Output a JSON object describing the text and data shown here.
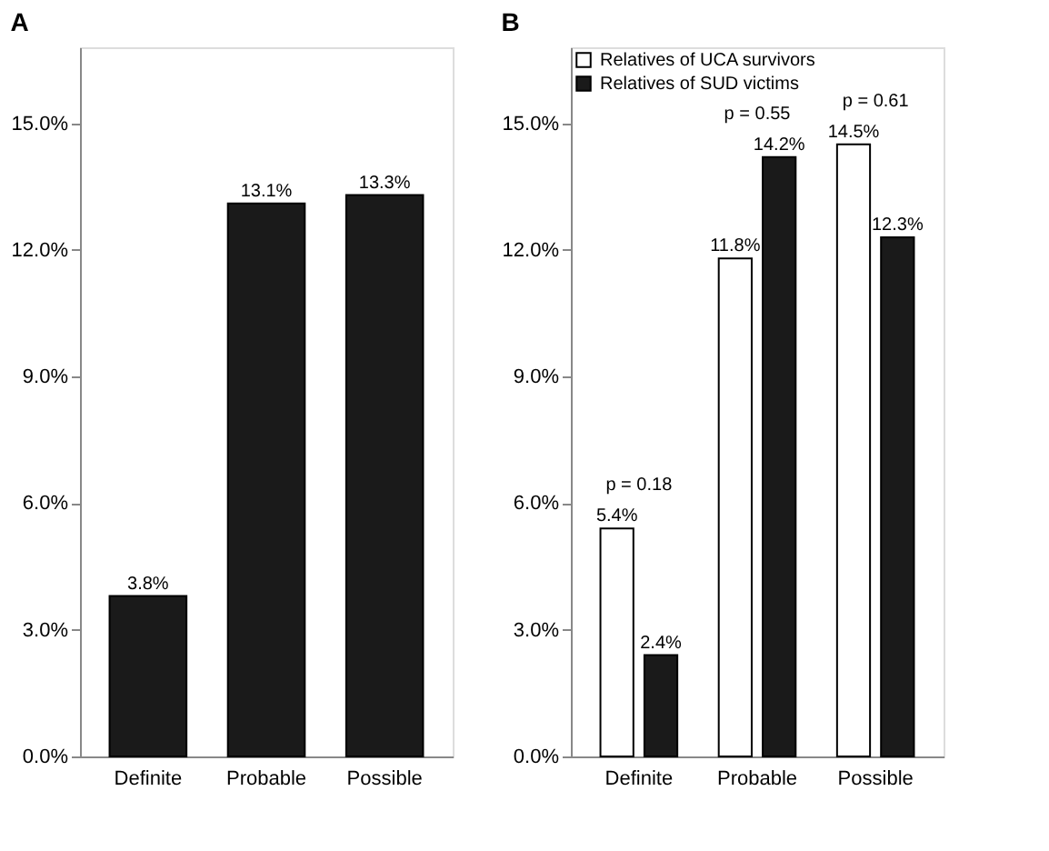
{
  "chart_data": [
    {
      "type": "bar",
      "title": "A",
      "categories": [
        "Definite",
        "Probable",
        "Possible"
      ],
      "series": [
        {
          "color": "#1a1a1a",
          "values": [
            3.8,
            13.1,
            13.3
          ],
          "value_labels": [
            "3.8%",
            "13.1%",
            "13.3%"
          ]
        }
      ],
      "ylim": [
        0,
        16.8
      ],
      "yticks": [
        {
          "value": 0,
          "label": "0.0%"
        },
        {
          "value": 3,
          "label": "3.0%"
        },
        {
          "value": 6,
          "label": "6.0%"
        },
        {
          "value": 9,
          "label": "9.0%"
        },
        {
          "value": 12,
          "label": "12.0%"
        },
        {
          "value": 15,
          "label": "15.0%"
        }
      ],
      "grid": false,
      "legend": false
    },
    {
      "type": "bar",
      "title": "B",
      "categories": [
        "Definite",
        "Probable",
        "Possible"
      ],
      "series": [
        {
          "name": "Relatives of UCA survivors",
          "color": "#ffffff",
          "values": [
            5.4,
            11.8,
            14.5
          ],
          "value_labels": [
            "5.4%",
            "11.8%",
            "14.5%"
          ]
        },
        {
          "name": "Relatives of SUD victims",
          "color": "#1a1a1a",
          "values": [
            2.4,
            14.2,
            12.3
          ],
          "value_labels": [
            "2.4%",
            "14.2%",
            "12.3%"
          ]
        }
      ],
      "annotations": [
        "p = 0.18",
        "p = 0.55",
        "p = 0.61"
      ],
      "ylim": [
        0,
        16.8
      ],
      "yticks": [
        {
          "value": 0,
          "label": "0.0%"
        },
        {
          "value": 3,
          "label": "3.0%"
        },
        {
          "value": 6,
          "label": "6.0%"
        },
        {
          "value": 9,
          "label": "9.0%"
        },
        {
          "value": 12,
          "label": "12.0%"
        },
        {
          "value": 15,
          "label": "15.0%"
        }
      ],
      "grid": false,
      "legend": "top left"
    }
  ]
}
